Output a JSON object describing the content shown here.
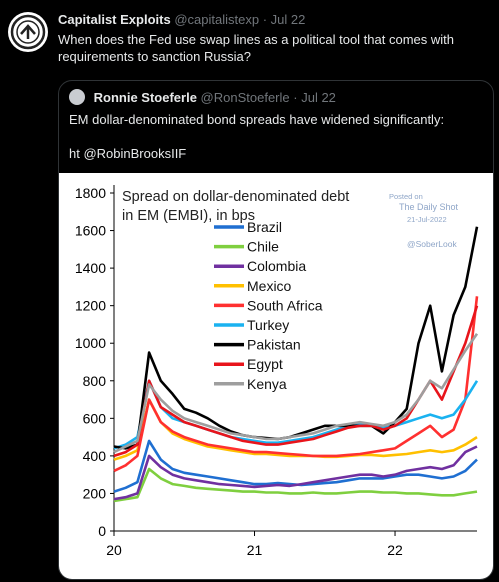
{
  "tweet": {
    "author_name": "Capitalist Exploits",
    "author_handle": "@capitalistexp",
    "date": "Jul 22",
    "text": "When does the Fed use swap lines as a political tool that comes with requirements to sanction Russia?"
  },
  "quote": {
    "author_name": "Ronnie Stoeferle",
    "author_handle": "@RonStoeferle",
    "date": "Jul 22",
    "text": "EM dollar-denominated bond spreads have widened significantly:\n\nht @RobinBrooksIIF"
  },
  "separator": "·",
  "chart_data": {
    "type": "line",
    "title": "Spread on dollar-denominated debt in EM (EMBI), in bps",
    "title_lines": [
      "Spread on dollar-denominated debt",
      "in EM (EMBI), in bps"
    ],
    "watermark": [
      "Posted on",
      "The Daily Shot",
      "21-Jul-2022",
      "@SoberLook"
    ],
    "xlabel": "",
    "ylabel": "",
    "xlim": [
      0,
      31
    ],
    "ylim": [
      0,
      1800
    ],
    "ytick_labels": [
      "0",
      "200",
      "400",
      "600",
      "800",
      "1000",
      "1200",
      "1400",
      "1600",
      "1800"
    ],
    "xticks": [
      0,
      12,
      24
    ],
    "xtick_labels": [
      "20",
      "21",
      "22"
    ],
    "grid": false,
    "legend_position": "top-center",
    "x": [
      0,
      1,
      2,
      3,
      4,
      5,
      6,
      7,
      8,
      9,
      10,
      11,
      12,
      13,
      14,
      15,
      16,
      17,
      18,
      19,
      20,
      21,
      22,
      23,
      24,
      25,
      26,
      27,
      28,
      29,
      30,
      31
    ],
    "series": [
      {
        "name": "Brazil",
        "color": "#1f6fd1",
        "values": [
          210,
          230,
          260,
          480,
          380,
          330,
          310,
          300,
          290,
          280,
          270,
          260,
          250,
          250,
          255,
          250,
          245,
          250,
          255,
          260,
          270,
          280,
          280,
          280,
          290,
          300,
          300,
          290,
          280,
          290,
          320,
          380
        ]
      },
      {
        "name": "Chile",
        "color": "#7fcf3f",
        "values": [
          160,
          170,
          180,
          330,
          280,
          250,
          240,
          230,
          225,
          220,
          215,
          210,
          210,
          205,
          205,
          200,
          200,
          205,
          200,
          200,
          205,
          210,
          210,
          205,
          205,
          200,
          200,
          195,
          190,
          190,
          200,
          210
        ]
      },
      {
        "name": "Colombia",
        "color": "#7030a0",
        "values": [
          170,
          180,
          200,
          400,
          340,
          300,
          280,
          270,
          260,
          250,
          245,
          240,
          235,
          240,
          245,
          240,
          250,
          260,
          270,
          280,
          290,
          300,
          300,
          290,
          300,
          320,
          330,
          340,
          330,
          350,
          420,
          450
        ]
      },
      {
        "name": "Mexico",
        "color": "#ffc000",
        "values": [
          380,
          400,
          430,
          700,
          580,
          520,
          490,
          470,
          450,
          440,
          430,
          420,
          410,
          410,
          405,
          400,
          400,
          400,
          395,
          395,
          400,
          405,
          405,
          400,
          405,
          410,
          420,
          430,
          420,
          430,
          460,
          500
        ]
      },
      {
        "name": "South Africa",
        "color": "#ff3030",
        "values": [
          320,
          350,
          400,
          700,
          580,
          530,
          500,
          480,
          460,
          450,
          440,
          430,
          420,
          420,
          415,
          410,
          405,
          400,
          400,
          400,
          405,
          410,
          420,
          430,
          440,
          480,
          520,
          560,
          500,
          540,
          700,
          1250
        ]
      },
      {
        "name": "Turkey",
        "color": "#1ab2f0",
        "values": [
          440,
          460,
          500,
          800,
          660,
          600,
          580,
          560,
          540,
          520,
          500,
          490,
          480,
          470,
          470,
          480,
          490,
          500,
          520,
          540,
          560,
          570,
          560,
          550,
          560,
          580,
          600,
          620,
          600,
          620,
          700,
          800
        ]
      },
      {
        "name": "Pakistan",
        "color": "#000000",
        "values": [
          450,
          440,
          460,
          950,
          800,
          730,
          650,
          630,
          600,
          560,
          530,
          510,
          500,
          495,
          490,
          500,
          520,
          540,
          560,
          560,
          560,
          560,
          560,
          520,
          580,
          650,
          1000,
          1200,
          850,
          1150,
          1300,
          1620
        ]
      },
      {
        "name": "Egypt",
        "color": "#e8141b",
        "values": [
          400,
          420,
          460,
          800,
          660,
          620,
          580,
          560,
          540,
          520,
          500,
          480,
          470,
          460,
          460,
          470,
          480,
          490,
          510,
          530,
          550,
          560,
          560,
          540,
          560,
          600,
          700,
          800,
          700,
          850,
          1000,
          1200
        ]
      },
      {
        "name": "Kenya",
        "color": "#9e9e9e",
        "values": [
          420,
          450,
          480,
          780,
          700,
          640,
          600,
          580,
          560,
          540,
          520,
          510,
          500,
          490,
          490,
          500,
          510,
          520,
          540,
          560,
          570,
          580,
          570,
          560,
          580,
          620,
          700,
          800,
          760,
          860,
          960,
          1050
        ]
      }
    ]
  }
}
